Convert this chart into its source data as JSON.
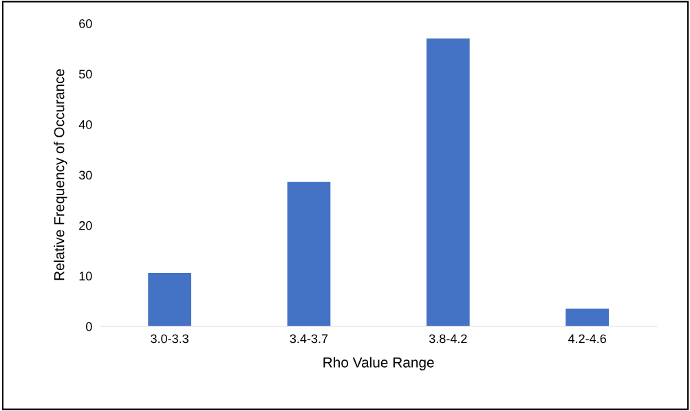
{
  "chart_data": {
    "type": "bar",
    "xlabel": "Rho Value Range",
    "ylabel": "Relative Frequency of Occurance",
    "categories": [
      "3.0-3.3",
      "3.4-3.7",
      "3.8-4.2",
      "4.2-4.6"
    ],
    "values": [
      10.6,
      28.6,
      57.0,
      3.5
    ],
    "color": "#4472c4",
    "ylim": [
      0,
      60
    ],
    "yticks": [
      0,
      10,
      20,
      30,
      40,
      50,
      60
    ],
    "grid": false,
    "legend": false
  }
}
